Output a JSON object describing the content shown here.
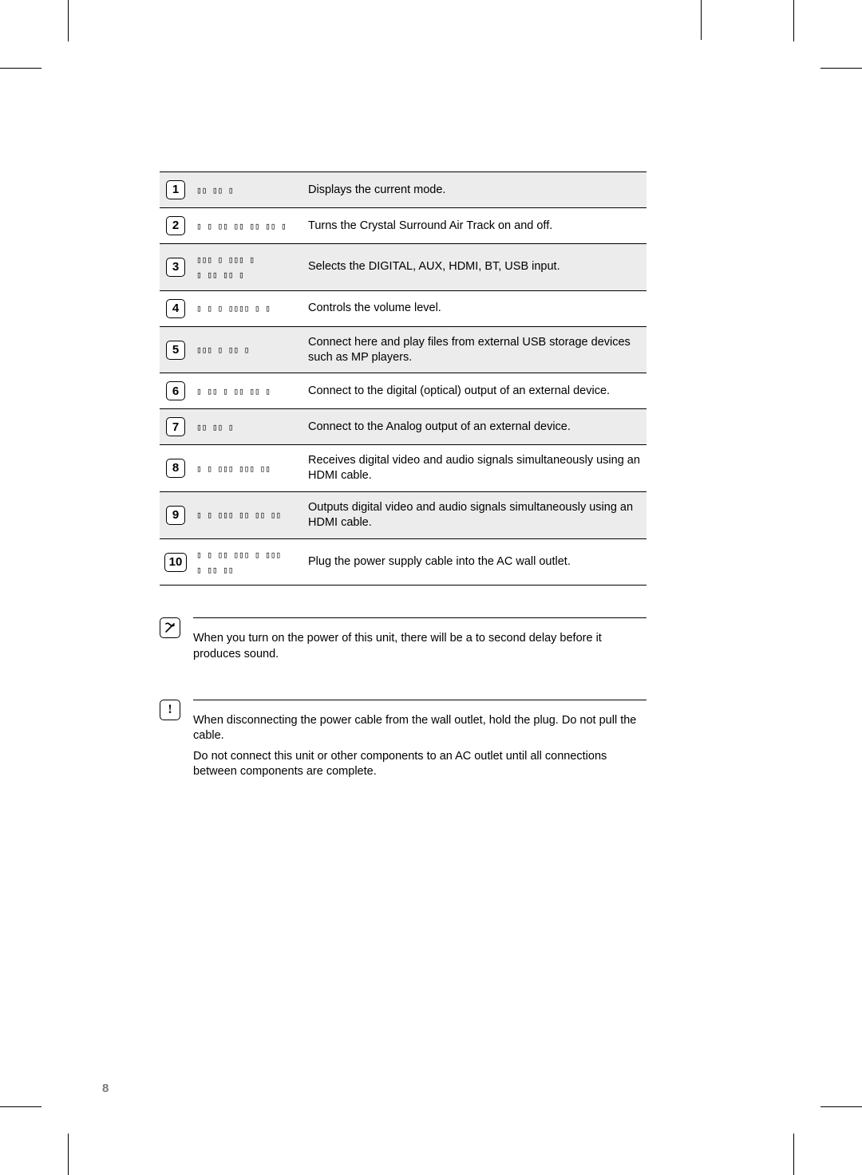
{
  "page_number": "8",
  "table": {
    "rows": [
      {
        "num": "1",
        "label": "▯▯ ▯▯ ▯",
        "desc": "Displays the current mode."
      },
      {
        "num": "2",
        "label": "▯ ▯ ▯▯ ▯▯ ▯▯ ▯▯ ▯",
        "desc": "Turns the Crystal Surround Air Track on and off."
      },
      {
        "num": "3",
        "label": "▯▯▯ ▯ ▯▯▯ ▯\n▯ ▯▯ ▯▯ ▯",
        "desc": "Selects the DIGITAL, AUX, HDMI, BT, USB input."
      },
      {
        "num": "4",
        "label": "▯ ▯ ▯ ▯▯▯▯ ▯ ▯",
        "desc": "Controls the volume level."
      },
      {
        "num": "5",
        "label": "▯▯▯  ▯ ▯▯ ▯",
        "desc": "Connect here and play files from external USB storage devices such as MP    players."
      },
      {
        "num": "6",
        "label": "▯ ▯▯ ▯ ▯▯ ▯▯ ▯",
        "desc": "Connect to the digital (optical) output of an external device."
      },
      {
        "num": "7",
        "label": "▯▯ ▯▯ ▯",
        "desc": "Connect to the Analog output of an external device."
      },
      {
        "num": "8",
        "label": "▯ ▯ ▯▯▯ ▯▯▯ ▯▯",
        "desc": "Receives digital video and audio signals simultaneously using an HDMI cable."
      },
      {
        "num": "9",
        "label": "▯ ▯ ▯▯▯ ▯▯ ▯▯ ▯▯",
        "desc": "Outputs digital video and audio signals simultaneously using an HDMI cable."
      },
      {
        "num": "10",
        "label": "▯ ▯ ▯▯ ▯▯▯ ▯ ▯▯▯\n▯ ▯▯ ▯▯",
        "desc": "Plug the power supply cable into the AC wall outlet."
      }
    ]
  },
  "note1": {
    "lines": [
      "When you turn on the power of this unit, there will be a     to     second delay before it produces sound."
    ]
  },
  "note2": {
    "lines": [
      "When disconnecting the power cable from the wall outlet, hold the plug. Do not pull the cable.",
      "Do not connect this unit or other components to an AC outlet until all connections between components are complete."
    ]
  },
  "shade_color": "#ececec"
}
